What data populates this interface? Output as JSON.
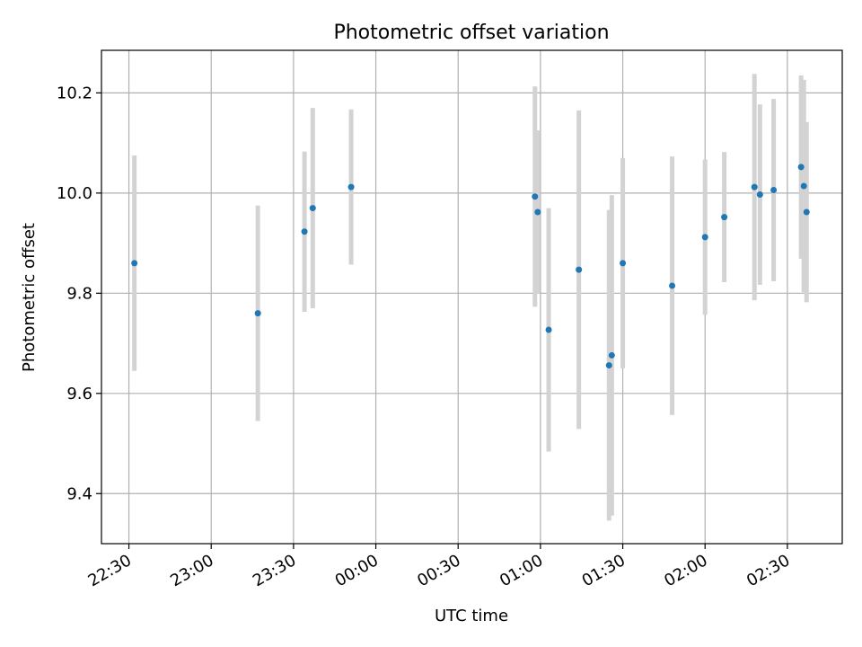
{
  "chart_data": {
    "type": "scatter",
    "title": "Photometric offset variation",
    "xlabel": "UTC time",
    "ylabel": "Photometric offset",
    "x_is_time": true,
    "xlim": [
      "22:20",
      "02:50"
    ],
    "ylim": [
      9.3,
      10.285
    ],
    "grid": true,
    "point_color": "#1f77b4",
    "errorbar_color": "#d3d3d3",
    "x_ticks": [
      "22:30",
      "23:00",
      "23:30",
      "00:00",
      "00:30",
      "01:00",
      "01:30",
      "02:00",
      "02:30"
    ],
    "y_ticks": [
      "9.4",
      "9.6",
      "9.8",
      "10.0",
      "10.2"
    ],
    "points": [
      {
        "t": "22:32",
        "y": 9.86,
        "err": 0.215
      },
      {
        "t": "23:17",
        "y": 9.76,
        "err": 0.215
      },
      {
        "t": "23:34",
        "y": 9.923,
        "err": 0.16
      },
      {
        "t": "23:37",
        "y": 9.97,
        "err": 0.2
      },
      {
        "t": "23:51",
        "y": 10.012,
        "err": 0.155
      },
      {
        "t": "00:58",
        "y": 9.993,
        "err": 0.22
      },
      {
        "t": "00:59",
        "y": 9.962,
        "err": 0.163
      },
      {
        "t": "01:03",
        "y": 9.727,
        "err": 0.243
      },
      {
        "t": "01:14",
        "y": 9.847,
        "err": 0.318
      },
      {
        "t": "01:25",
        "y": 9.656,
        "err": 0.31
      },
      {
        "t": "01:26",
        "y": 9.676,
        "err": 0.32
      },
      {
        "t": "01:30",
        "y": 9.86,
        "err": 0.21
      },
      {
        "t": "01:48",
        "y": 9.815,
        "err": 0.258
      },
      {
        "t": "02:00",
        "y": 9.912,
        "err": 0.155
      },
      {
        "t": "02:07",
        "y": 9.952,
        "err": 0.13
      },
      {
        "t": "02:18",
        "y": 10.012,
        "err": 0.226
      },
      {
        "t": "02:20",
        "y": 9.997,
        "err": 0.18
      },
      {
        "t": "02:25",
        "y": 10.006,
        "err": 0.182
      },
      {
        "t": "02:35",
        "y": 10.052,
        "err": 0.183
      },
      {
        "t": "02:36",
        "y": 10.014,
        "err": 0.212
      },
      {
        "t": "02:37",
        "y": 9.962,
        "err": 0.18
      }
    ]
  }
}
